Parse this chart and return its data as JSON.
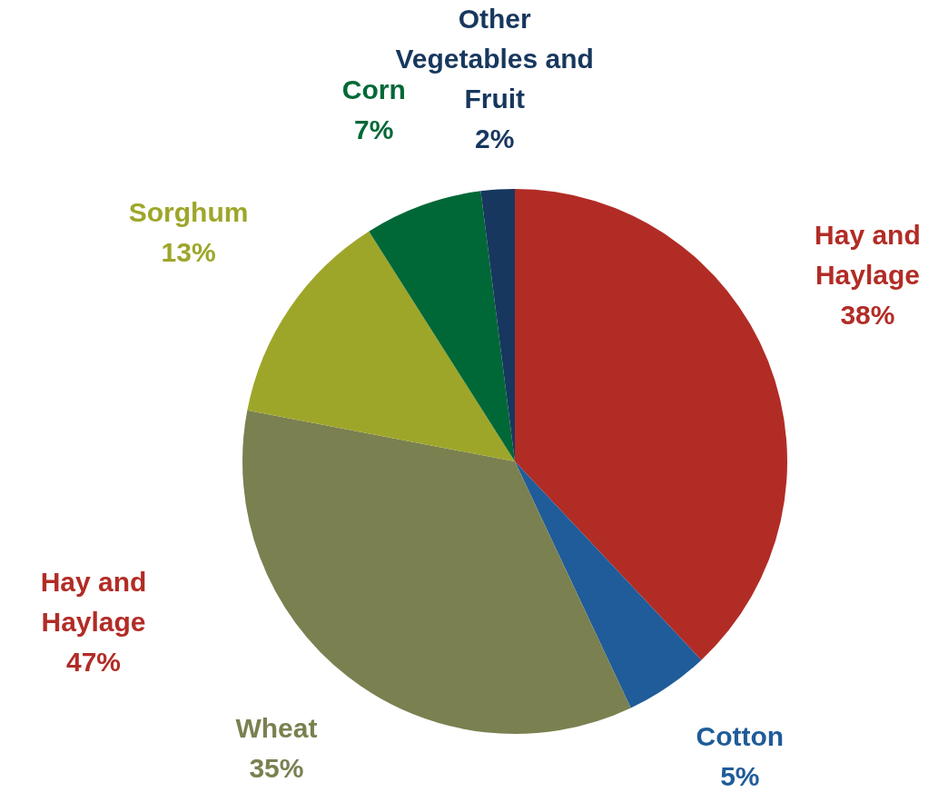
{
  "chart_data": {
    "type": "pie",
    "categories": [
      "Hay and Haylage",
      "Cotton",
      "Wheat",
      "Sorghum",
      "Corn",
      "Other Vegetables and Fruit"
    ],
    "values": [
      38,
      5,
      35,
      13,
      7,
      2
    ],
    "colors": [
      "#b22c26",
      "#1f5c99",
      "#7a8050",
      "#9ea62a",
      "#006837",
      "#17375e"
    ],
    "value_labels": [
      "38%",
      "5%",
      "35%",
      "13%",
      "7%",
      "2%"
    ],
    "annotations": [
      "Hay and Haylage 47%"
    ]
  }
}
